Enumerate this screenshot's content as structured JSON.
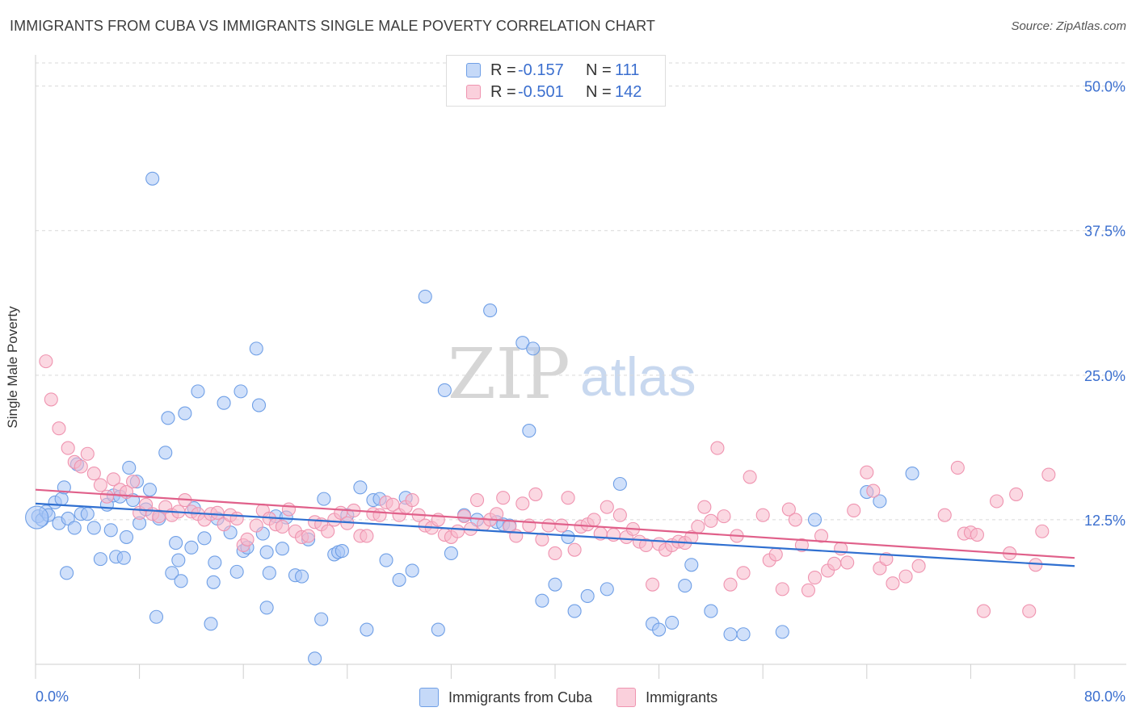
{
  "header": {
    "title": "IMMIGRANTS FROM CUBA VS IMMIGRANTS SINGLE MALE POVERTY CORRELATION CHART",
    "source": "Source: ZipAtlas.com"
  },
  "legend_top": {
    "rows": [
      {
        "r_label": "R =",
        "r_value": "-0.157",
        "n_label": "N =",
        "n_value": "111",
        "color": "#a9c6f5"
      },
      {
        "r_label": "R =",
        "r_value": "-0.501",
        "n_label": "N =",
        "n_value": "142",
        "color": "#f7b8cb"
      }
    ]
  },
  "legend_bottom": {
    "items": [
      {
        "label": "Immigrants from Cuba",
        "color": "#a9c6f5"
      },
      {
        "label": "Immigrants",
        "color": "#f7b8cb"
      }
    ]
  },
  "watermark": {
    "zip": "ZIP",
    "atlas": "atlas"
  },
  "chart_data": {
    "type": "scatter",
    "title": "IMMIGRANTS FROM CUBA VS IMMIGRANTS SINGLE MALE POVERTY CORRELATION CHART",
    "xlabel": "",
    "ylabel": "Single Male Poverty",
    "xlim": [
      0,
      80
    ],
    "ylim": [
      0,
      52
    ],
    "x_tick_labels": [
      "0.0%",
      "80.0%"
    ],
    "y_ticks": [
      12.5,
      25.0,
      37.5,
      50.0
    ],
    "y_tick_labels": [
      "12.5%",
      "25.0%",
      "37.5%",
      "50.0%"
    ],
    "grid": true,
    "series": [
      {
        "name": "Immigrants from Cuba",
        "color": "#6f9fe6",
        "fill": "#a9c6f5",
        "line_color": "#2f6fd0",
        "trend": [
          [
            0,
            13.9
          ],
          [
            80,
            8.5
          ]
        ],
        "points": [
          [
            0.2,
            12.8
          ],
          [
            0.5,
            12.5
          ],
          [
            0.8,
            13.2
          ],
          [
            1.0,
            12.9
          ],
          [
            1.5,
            14.0
          ],
          [
            1.8,
            12.2
          ],
          [
            2.0,
            14.3
          ],
          [
            2.2,
            15.3
          ],
          [
            2.5,
            12.6
          ],
          [
            2.4,
            7.9
          ],
          [
            3.0,
            11.8
          ],
          [
            3.2,
            17.3
          ],
          [
            3.5,
            13.0
          ],
          [
            4.0,
            13.0
          ],
          [
            4.5,
            11.8
          ],
          [
            5.0,
            9.1
          ],
          [
            5.5,
            13.8
          ],
          [
            5.8,
            11.6
          ],
          [
            6.0,
            14.6
          ],
          [
            6.2,
            9.3
          ],
          [
            6.5,
            14.5
          ],
          [
            6.8,
            9.2
          ],
          [
            7.0,
            11.0
          ],
          [
            7.2,
            17.0
          ],
          [
            7.5,
            14.2
          ],
          [
            7.8,
            15.8
          ],
          [
            8.0,
            12.2
          ],
          [
            8.5,
            13.4
          ],
          [
            8.8,
            15.1
          ],
          [
            9.0,
            42.0
          ],
          [
            9.5,
            12.6
          ],
          [
            9.3,
            4.1
          ],
          [
            10.0,
            18.3
          ],
          [
            10.2,
            21.3
          ],
          [
            10.5,
            7.9
          ],
          [
            10.8,
            10.5
          ],
          [
            11.0,
            9.0
          ],
          [
            11.2,
            7.2
          ],
          [
            11.5,
            21.7
          ],
          [
            12.0,
            10.1
          ],
          [
            12.2,
            13.5
          ],
          [
            12.5,
            23.6
          ],
          [
            13.0,
            10.9
          ],
          [
            13.5,
            3.5
          ],
          [
            13.8,
            8.8
          ],
          [
            13.7,
            7.1
          ],
          [
            14.5,
            22.6
          ],
          [
            14.0,
            12.6
          ],
          [
            15.0,
            11.4
          ],
          [
            15.5,
            8.0
          ],
          [
            15.8,
            23.6
          ],
          [
            16.0,
            9.8
          ],
          [
            16.3,
            10.1
          ],
          [
            17.0,
            27.3
          ],
          [
            17.5,
            11.3
          ],
          [
            17.8,
            9.7
          ],
          [
            17.2,
            22.4
          ],
          [
            17.8,
            4.9
          ],
          [
            18.0,
            7.9
          ],
          [
            18.5,
            12.8
          ],
          [
            19.0,
            10.0
          ],
          [
            19.3,
            12.7
          ],
          [
            20.0,
            7.7
          ],
          [
            20.5,
            7.6
          ],
          [
            21.0,
            10.8
          ],
          [
            21.5,
            0.5
          ],
          [
            22.0,
            3.9
          ],
          [
            22.2,
            14.3
          ],
          [
            23.0,
            9.5
          ],
          [
            23.3,
            9.7
          ],
          [
            23.6,
            9.8
          ],
          [
            24.0,
            12.9
          ],
          [
            25.0,
            15.3
          ],
          [
            25.5,
            3.0
          ],
          [
            26.0,
            14.2
          ],
          [
            26.5,
            14.3
          ],
          [
            27.0,
            9.0
          ],
          [
            28.0,
            7.3
          ],
          [
            28.5,
            14.4
          ],
          [
            29.0,
            8.1
          ],
          [
            30.0,
            31.8
          ],
          [
            31.0,
            3.0
          ],
          [
            31.5,
            23.7
          ],
          [
            32.0,
            9.6
          ],
          [
            33.0,
            12.9
          ],
          [
            34.0,
            12.5
          ],
          [
            35.0,
            30.6
          ],
          [
            35.5,
            12.3
          ],
          [
            36.0,
            12.1
          ],
          [
            36.5,
            12.0
          ],
          [
            37.5,
            27.8
          ],
          [
            38.0,
            20.2
          ],
          [
            38.3,
            27.3
          ],
          [
            39.0,
            5.5
          ],
          [
            40.0,
            6.9
          ],
          [
            41.0,
            11.0
          ],
          [
            41.5,
            4.6
          ],
          [
            42.5,
            5.9
          ],
          [
            45.0,
            15.6
          ],
          [
            44.0,
            6.5
          ],
          [
            47.5,
            3.5
          ],
          [
            48.0,
            3.0
          ],
          [
            49.0,
            3.6
          ],
          [
            50.5,
            8.6
          ],
          [
            50.0,
            6.8
          ],
          [
            52.0,
            4.6
          ],
          [
            53.5,
            2.6
          ],
          [
            54.5,
            2.6
          ],
          [
            57.5,
            2.8
          ],
          [
            60.0,
            12.5
          ],
          [
            64.0,
            14.9
          ],
          [
            65.0,
            14.1
          ],
          [
            67.5,
            16.5
          ]
        ]
      },
      {
        "name": "Immigrants",
        "color": "#ef94b0",
        "fill": "#f7b8cb",
        "line_color": "#e0608a",
        "trend": [
          [
            0,
            15.1
          ],
          [
            80,
            9.2
          ]
        ],
        "points": [
          [
            0.8,
            26.2
          ],
          [
            1.2,
            22.9
          ],
          [
            1.8,
            20.4
          ],
          [
            2.5,
            18.7
          ],
          [
            3.0,
            17.5
          ],
          [
            3.5,
            17.1
          ],
          [
            4.0,
            18.2
          ],
          [
            4.5,
            16.5
          ],
          [
            5.0,
            15.5
          ],
          [
            5.5,
            14.5
          ],
          [
            6.0,
            16.0
          ],
          [
            6.5,
            15.1
          ],
          [
            7.0,
            14.9
          ],
          [
            7.5,
            15.8
          ],
          [
            8.0,
            13.1
          ],
          [
            8.5,
            13.8
          ],
          [
            9.0,
            13.0
          ],
          [
            9.5,
            12.8
          ],
          [
            10.0,
            13.6
          ],
          [
            10.5,
            12.9
          ],
          [
            11.0,
            13.2
          ],
          [
            11.5,
            14.2
          ],
          [
            12.0,
            13.2
          ],
          [
            12.5,
            13.0
          ],
          [
            13.0,
            12.5
          ],
          [
            13.5,
            13.0
          ],
          [
            14.0,
            13.1
          ],
          [
            14.5,
            12.1
          ],
          [
            15.0,
            12.9
          ],
          [
            15.5,
            12.6
          ],
          [
            16.0,
            10.3
          ],
          [
            16.3,
            10.8
          ],
          [
            17.0,
            12.0
          ],
          [
            17.5,
            13.3
          ],
          [
            18.0,
            12.6
          ],
          [
            18.5,
            12.1
          ],
          [
            19.0,
            11.9
          ],
          [
            19.5,
            13.4
          ],
          [
            20.0,
            11.5
          ],
          [
            20.5,
            11.0
          ],
          [
            21.0,
            11.1
          ],
          [
            21.5,
            12.3
          ],
          [
            22.0,
            12.1
          ],
          [
            22.5,
            11.5
          ],
          [
            23.0,
            12.5
          ],
          [
            23.5,
            13.1
          ],
          [
            24.0,
            12.2
          ],
          [
            24.5,
            13.3
          ],
          [
            25.0,
            11.1
          ],
          [
            25.5,
            11.1
          ],
          [
            26.0,
            13.0
          ],
          [
            26.5,
            12.9
          ],
          [
            27.0,
            14.0
          ],
          [
            27.5,
            13.8
          ],
          [
            28.0,
            12.9
          ],
          [
            28.5,
            13.6
          ],
          [
            29.0,
            14.2
          ],
          [
            29.5,
            12.9
          ],
          [
            30.0,
            12.0
          ],
          [
            30.5,
            11.8
          ],
          [
            31.0,
            12.5
          ],
          [
            31.5,
            11.2
          ],
          [
            32.0,
            11.0
          ],
          [
            32.5,
            11.5
          ],
          [
            33.0,
            12.8
          ],
          [
            33.5,
            11.7
          ],
          [
            34.0,
            14.2
          ],
          [
            34.5,
            12.1
          ],
          [
            35.0,
            12.5
          ],
          [
            35.5,
            13.0
          ],
          [
            36.0,
            14.4
          ],
          [
            36.5,
            11.9
          ],
          [
            37.0,
            11.1
          ],
          [
            37.5,
            13.9
          ],
          [
            38.0,
            12.0
          ],
          [
            38.5,
            14.7
          ],
          [
            39.0,
            10.8
          ],
          [
            39.5,
            12.0
          ],
          [
            40.0,
            9.6
          ],
          [
            40.5,
            12.0
          ],
          [
            41.0,
            14.4
          ],
          [
            41.5,
            9.9
          ],
          [
            42.0,
            11.9
          ],
          [
            42.5,
            12.1
          ],
          [
            43.0,
            12.5
          ],
          [
            43.5,
            11.3
          ],
          [
            44.0,
            13.6
          ],
          [
            44.5,
            11.2
          ],
          [
            45.0,
            12.9
          ],
          [
            45.5,
            11.0
          ],
          [
            46.0,
            11.7
          ],
          [
            46.5,
            10.6
          ],
          [
            47.0,
            10.3
          ],
          [
            47.5,
            6.9
          ],
          [
            48.0,
            10.4
          ],
          [
            48.5,
            9.9
          ],
          [
            49.0,
            10.3
          ],
          [
            49.5,
            10.6
          ],
          [
            50.0,
            10.5
          ],
          [
            50.5,
            11.0
          ],
          [
            51.0,
            11.9
          ],
          [
            51.5,
            13.6
          ],
          [
            52.0,
            12.4
          ],
          [
            52.5,
            18.7
          ],
          [
            53.0,
            12.8
          ],
          [
            53.5,
            6.9
          ],
          [
            54.0,
            11.1
          ],
          [
            54.5,
            7.9
          ],
          [
            55.0,
            16.2
          ],
          [
            56.0,
            12.9
          ],
          [
            56.5,
            9.0
          ],
          [
            57.0,
            9.5
          ],
          [
            57.5,
            6.5
          ],
          [
            58.0,
            13.4
          ],
          [
            58.5,
            12.5
          ],
          [
            59.0,
            10.3
          ],
          [
            59.5,
            6.4
          ],
          [
            60.0,
            7.5
          ],
          [
            60.5,
            11.1
          ],
          [
            61.0,
            8.1
          ],
          [
            61.5,
            8.7
          ],
          [
            62.0,
            10.0
          ],
          [
            62.5,
            8.8
          ],
          [
            63.0,
            13.3
          ],
          [
            64.0,
            16.6
          ],
          [
            64.5,
            15.0
          ],
          [
            65.0,
            8.3
          ],
          [
            65.5,
            9.1
          ],
          [
            66.0,
            7.0
          ],
          [
            67.0,
            7.6
          ],
          [
            68.0,
            8.5
          ],
          [
            70.0,
            12.9
          ],
          [
            71.0,
            17.0
          ],
          [
            71.5,
            11.3
          ],
          [
            72.0,
            11.4
          ],
          [
            72.5,
            11.2
          ],
          [
            73.0,
            4.6
          ],
          [
            74.0,
            14.1
          ],
          [
            75.0,
            9.6
          ],
          [
            75.5,
            14.7
          ],
          [
            77.0,
            8.6
          ],
          [
            77.5,
            11.5
          ],
          [
            76.5,
            4.6
          ],
          [
            78.0,
            16.4
          ]
        ]
      }
    ]
  }
}
